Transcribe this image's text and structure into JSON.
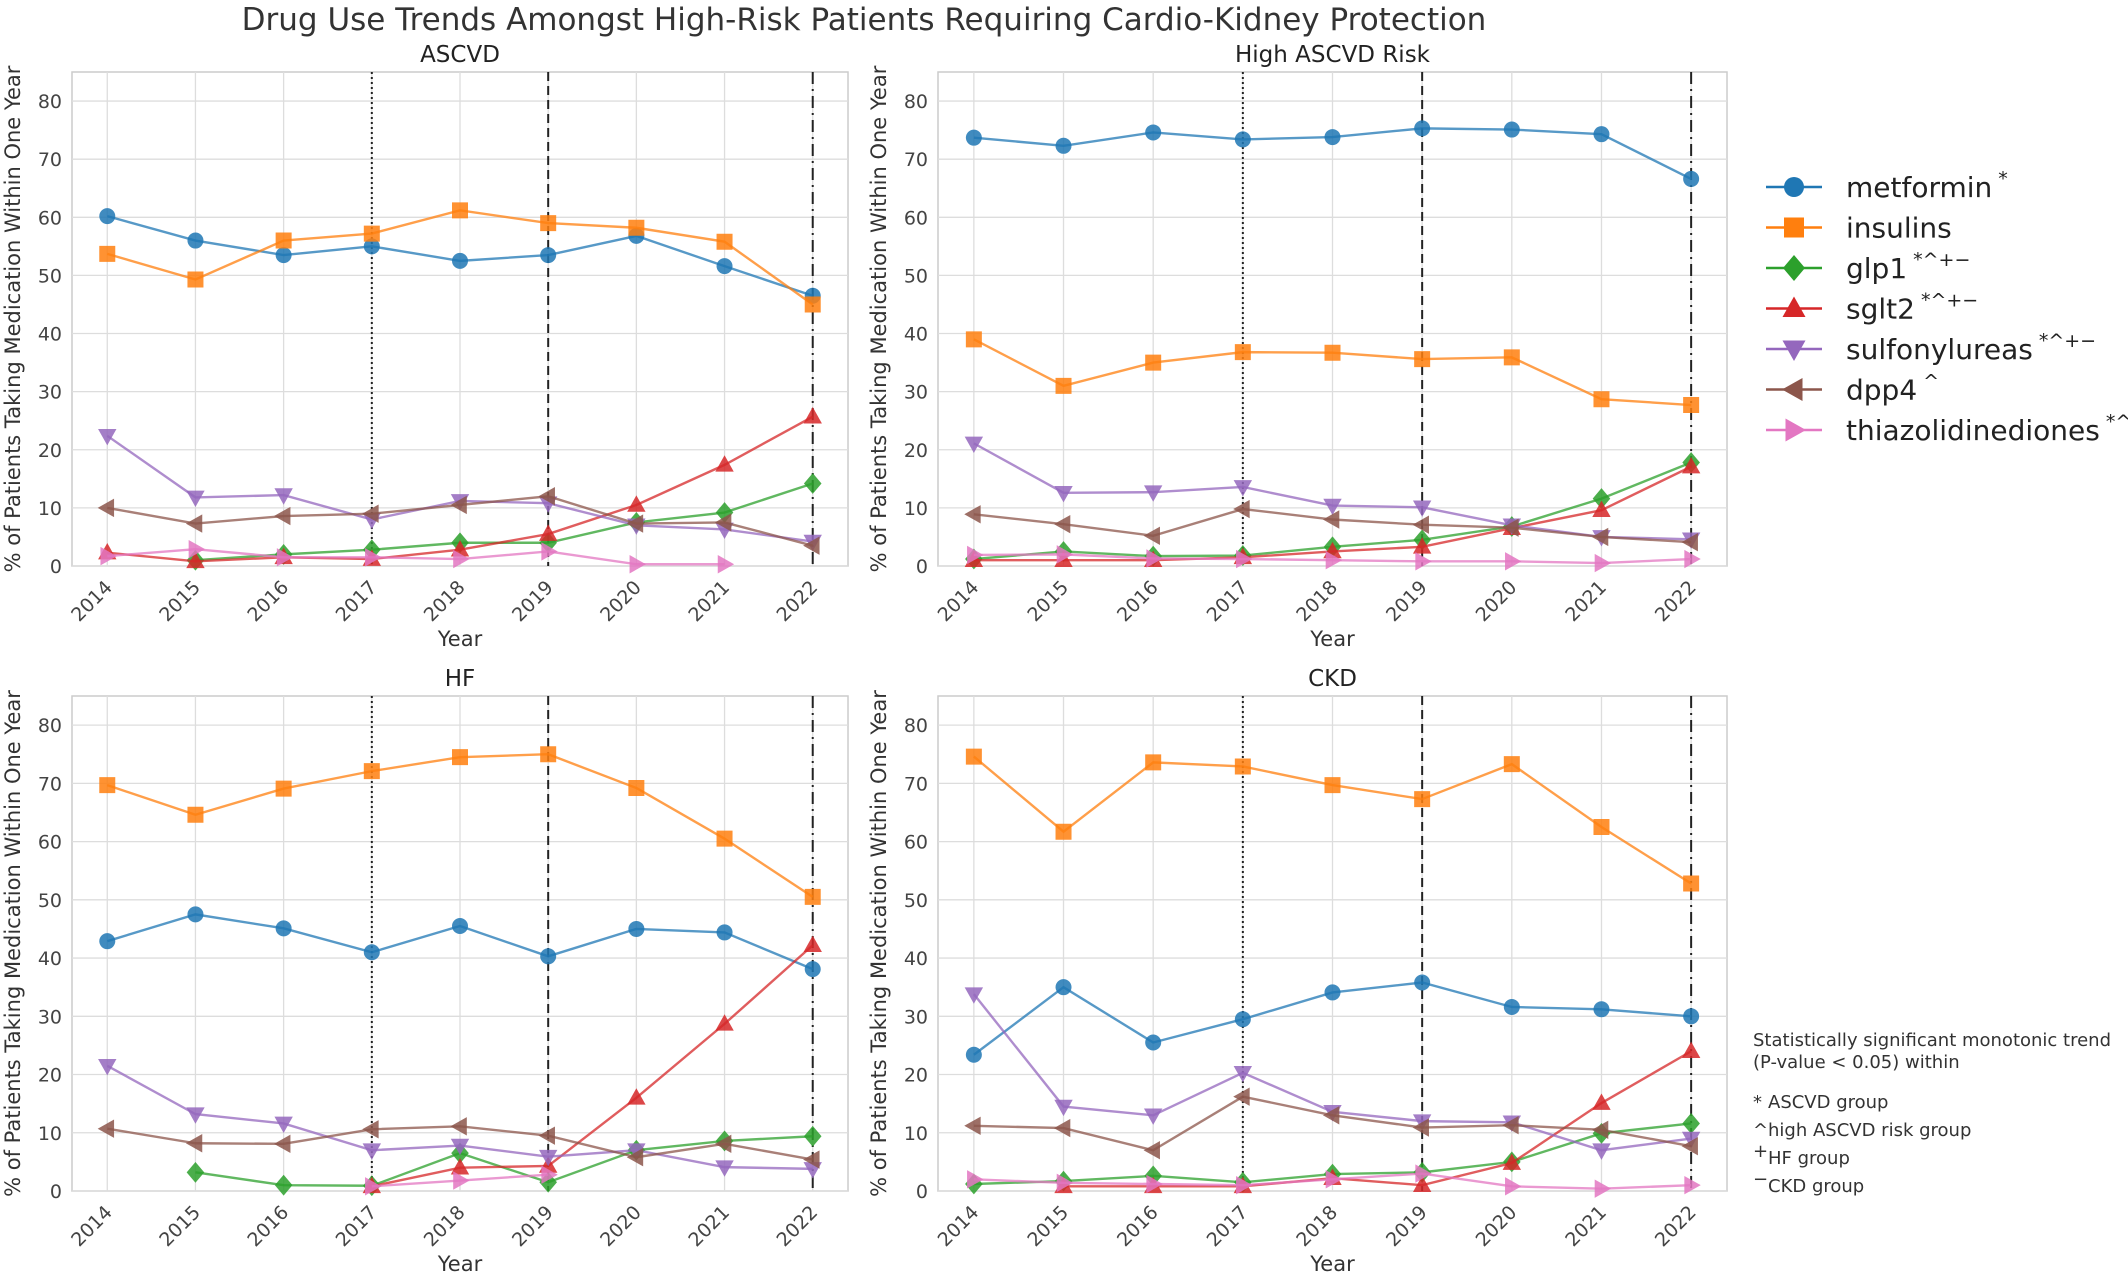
{
  "suptitle": "Drug Use Trends Amongst High-Risk Patients Requiring Cardio-Kidney Protection",
  "colors": {
    "metformin": "#1f77b4",
    "insulins": "#ff7f0e",
    "glp1": "#2ca02c",
    "sglt2": "#d62728",
    "sulfonylureas": "#9467bd",
    "dpp4": "#8c564b",
    "thiazolidinediones": "#e377c2"
  },
  "legend": [
    {
      "key": "metformin",
      "label": "metformin",
      "sup": "*",
      "marker": "circle"
    },
    {
      "key": "insulins",
      "label": "insulins",
      "sup": "",
      "marker": "square"
    },
    {
      "key": "glp1",
      "label": "glp1",
      "sup": "*^+−",
      "marker": "diamond"
    },
    {
      "key": "sglt2",
      "label": "sglt2",
      "sup": "*^+−",
      "marker": "triangle-up"
    },
    {
      "key": "sulfonylureas",
      "label": "sulfonylureas",
      "sup": "*^+−",
      "marker": "triangle-down"
    },
    {
      "key": "dpp4",
      "label": "dpp4",
      "sup": "^",
      "marker": "triangle-left"
    },
    {
      "key": "thiazolidinediones",
      "label": "thiazolidinediones",
      "sup": "*^",
      "marker": "triangle-right"
    }
  ],
  "note": {
    "heading": [
      "Statistically significant monotonic trend",
      "(P-value < 0.05) within"
    ],
    "items": [
      {
        "sym": "*",
        "text": "ASCVD group"
      },
      {
        "sym": "^",
        "text": "high ASCVD risk group"
      },
      {
        "sym": "+",
        "text": "HF group"
      },
      {
        "sym": "−",
        "text": "CKD group"
      }
    ]
  },
  "chart_data": [
    {
      "type": "line",
      "title": "ASCVD",
      "xlabel": "Year",
      "ylabel": "% of Patients Taking Medication Within One Year",
      "x": [
        2014,
        2015,
        2016,
        2017,
        2018,
        2019,
        2020,
        2021,
        2022
      ],
      "ylim": [
        0,
        85
      ],
      "yticks": [
        0,
        10,
        20,
        30,
        40,
        50,
        60,
        70,
        80
      ],
      "grid": true,
      "vlines": [
        {
          "x": 2017,
          "style": "dotted"
        },
        {
          "x": 2019,
          "style": "dashed"
        },
        {
          "x": 2022,
          "style": "dashdot"
        }
      ],
      "series": [
        {
          "key": "metformin",
          "name": "metformin",
          "values": [
            60.2,
            56.0,
            53.5,
            55.0,
            52.5,
            53.5,
            56.8,
            51.6,
            46.5
          ]
        },
        {
          "key": "insulins",
          "name": "insulins",
          "values": [
            53.7,
            49.3,
            56.0,
            57.2,
            61.2,
            59.0,
            58.2,
            55.8,
            45.0
          ]
        },
        {
          "key": "glp1",
          "name": "glp1",
          "values": [
            null,
            1.0,
            2.0,
            2.8,
            4.0,
            4.0,
            7.5,
            9.2,
            14.2
          ]
        },
        {
          "key": "sglt2",
          "name": "sglt2",
          "values": [
            2.3,
            0.8,
            1.5,
            1.2,
            2.8,
            5.5,
            10.5,
            17.4,
            25.7
          ]
        },
        {
          "key": "sulfonylureas",
          "name": "sulfonylureas",
          "values": [
            22.4,
            11.8,
            12.2,
            8.0,
            11.2,
            10.8,
            7.0,
            6.3,
            4.2
          ]
        },
        {
          "key": "dpp4",
          "name": "dpp4",
          "values": [
            10.0,
            7.3,
            8.6,
            9.0,
            10.5,
            12.0,
            7.3,
            7.5,
            3.5
          ]
        },
        {
          "key": "thiazolidinediones",
          "name": "thiazolidinediones",
          "values": [
            1.7,
            2.9,
            1.5,
            1.5,
            1.2,
            2.5,
            0.3,
            0.3,
            null
          ]
        }
      ]
    },
    {
      "type": "line",
      "title": "High ASCVD Risk",
      "xlabel": "Year",
      "ylabel": "% of Patients Taking Medication Within One Year",
      "x": [
        2014,
        2015,
        2016,
        2017,
        2018,
        2019,
        2020,
        2021,
        2022
      ],
      "ylim": [
        0,
        85
      ],
      "yticks": [
        0,
        10,
        20,
        30,
        40,
        50,
        60,
        70,
        80
      ],
      "grid": true,
      "vlines": [
        {
          "x": 2017,
          "style": "dotted"
        },
        {
          "x": 2019,
          "style": "dashed"
        },
        {
          "x": 2022,
          "style": "dashdot"
        }
      ],
      "series": [
        {
          "key": "metformin",
          "name": "metformin",
          "values": [
            73.7,
            72.3,
            74.6,
            73.4,
            73.8,
            75.3,
            75.1,
            74.3,
            66.6
          ]
        },
        {
          "key": "insulins",
          "name": "insulins",
          "values": [
            39.0,
            31.0,
            35.0,
            36.8,
            36.7,
            35.6,
            35.9,
            28.7,
            27.7
          ]
        },
        {
          "key": "glp1",
          "name": "glp1",
          "values": [
            1.2,
            2.5,
            1.7,
            1.8,
            3.3,
            4.5,
            6.8,
            11.6,
            17.8
          ]
        },
        {
          "key": "sglt2",
          "name": "sglt2",
          "values": [
            1.0,
            1.0,
            1.0,
            1.5,
            2.5,
            3.3,
            6.5,
            9.6,
            17.1
          ]
        },
        {
          "key": "sulfonylureas",
          "name": "sulfonylureas",
          "values": [
            21.1,
            12.6,
            12.7,
            13.6,
            10.4,
            10.1,
            7.0,
            5.0,
            4.6
          ]
        },
        {
          "key": "dpp4",
          "name": "dpp4",
          "values": [
            8.9,
            7.2,
            5.2,
            9.8,
            8.0,
            7.1,
            6.6,
            5.0,
            4.1
          ]
        },
        {
          "key": "thiazolidinediones",
          "name": "thiazolidinediones",
          "values": [
            1.9,
            2.0,
            1.3,
            1.2,
            1.0,
            0.8,
            0.8,
            0.5,
            1.2
          ]
        }
      ]
    },
    {
      "type": "line",
      "title": "HF",
      "xlabel": "Year",
      "ylabel": "% of Patients Taking Medication Within One Year",
      "x": [
        2014,
        2015,
        2016,
        2017,
        2018,
        2019,
        2020,
        2021,
        2022
      ],
      "ylim": [
        0,
        85
      ],
      "yticks": [
        0,
        10,
        20,
        30,
        40,
        50,
        60,
        70,
        80
      ],
      "grid": true,
      "vlines": [
        {
          "x": 2017,
          "style": "dotted"
        },
        {
          "x": 2019,
          "style": "dashed"
        },
        {
          "x": 2022,
          "style": "dashdot"
        }
      ],
      "series": [
        {
          "key": "metformin",
          "name": "metformin",
          "values": [
            42.9,
            47.5,
            45.1,
            41.0,
            45.5,
            40.3,
            45.0,
            44.4,
            38.1
          ]
        },
        {
          "key": "insulins",
          "name": "insulins",
          "values": [
            69.7,
            64.6,
            69.1,
            72.1,
            74.5,
            75.0,
            69.2,
            60.5,
            50.5
          ]
        },
        {
          "key": "glp1",
          "name": "glp1",
          "values": [
            null,
            3.2,
            1.0,
            0.9,
            6.5,
            1.5,
            7.0,
            8.6,
            9.4
          ]
        },
        {
          "key": "sglt2",
          "name": "sglt2",
          "values": [
            null,
            null,
            null,
            0.8,
            4.0,
            4.3,
            16.0,
            28.7,
            42.2
          ]
        },
        {
          "key": "sulfonylureas",
          "name": "sulfonylureas",
          "values": [
            21.5,
            13.2,
            11.6,
            7.0,
            7.8,
            5.9,
            7.0,
            4.1,
            3.8
          ]
        },
        {
          "key": "dpp4",
          "name": "dpp4",
          "values": [
            10.7,
            8.2,
            8.1,
            10.6,
            11.1,
            9.5,
            5.8,
            8.1,
            5.4
          ]
        },
        {
          "key": "thiazolidinediones",
          "name": "thiazolidinediones",
          "values": [
            null,
            null,
            null,
            0.8,
            1.8,
            2.8,
            null,
            null,
            null
          ]
        }
      ]
    },
    {
      "type": "line",
      "title": "CKD",
      "xlabel": "Year",
      "ylabel": "% of Patients Taking Medication Within One Year",
      "x": [
        2014,
        2015,
        2016,
        2017,
        2018,
        2019,
        2020,
        2021,
        2022
      ],
      "ylim": [
        0,
        85
      ],
      "yticks": [
        0,
        10,
        20,
        30,
        40,
        50,
        60,
        70,
        80
      ],
      "grid": true,
      "vlines": [
        {
          "x": 2017,
          "style": "dotted"
        },
        {
          "x": 2019,
          "style": "dashed"
        },
        {
          "x": 2022,
          "style": "dashdot"
        }
      ],
      "series": [
        {
          "key": "metformin",
          "name": "metformin",
          "values": [
            23.4,
            35.0,
            25.5,
            29.5,
            34.1,
            35.8,
            31.6,
            31.2,
            30.0
          ]
        },
        {
          "key": "insulins",
          "name": "insulins",
          "values": [
            74.6,
            61.7,
            73.6,
            72.9,
            69.7,
            67.3,
            73.3,
            62.5,
            52.8
          ]
        },
        {
          "key": "glp1",
          "name": "glp1",
          "values": [
            1.2,
            1.7,
            2.6,
            1.5,
            2.9,
            3.2,
            5.0,
            9.9,
            11.6
          ]
        },
        {
          "key": "sglt2",
          "name": "sglt2",
          "values": [
            null,
            0.8,
            0.8,
            0.8,
            2.2,
            1.0,
            4.8,
            15.1,
            24.0
          ]
        },
        {
          "key": "sulfonylureas",
          "name": "sulfonylureas",
          "values": [
            33.8,
            14.5,
            13.0,
            20.3,
            13.6,
            12.0,
            11.8,
            7.0,
            9.0
          ]
        },
        {
          "key": "dpp4",
          "name": "dpp4",
          "values": [
            11.2,
            10.8,
            7.0,
            16.2,
            13.0,
            10.9,
            11.3,
            10.5,
            7.7
          ]
        },
        {
          "key": "thiazolidinediones",
          "name": "thiazolidinediones",
          "values": [
            2.0,
            1.4,
            1.2,
            1.0,
            2.0,
            3.0,
            0.8,
            0.4,
            1.0
          ]
        }
      ]
    }
  ]
}
